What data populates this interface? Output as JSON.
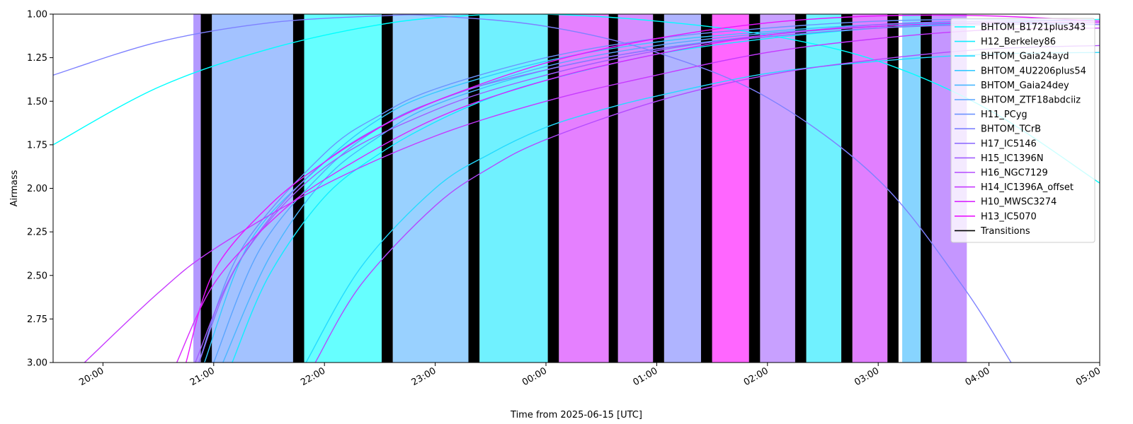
{
  "chart_data": {
    "type": "line",
    "title": "",
    "xlabel": "Time from 2025-06-15 [UTC]",
    "ylabel": "Airmass",
    "ylim": [
      3.0,
      1.0
    ],
    "y_inverted": true,
    "xlim": [
      "2025-06-15 19:33",
      "2025-06-16 05:00"
    ],
    "x_ticks": [
      "20:00",
      "21:00",
      "22:00",
      "23:00",
      "00:00",
      "01:00",
      "02:00",
      "03:00",
      "04:00",
      "05:00"
    ],
    "x_tick_times": [
      "2025-06-15 20:00",
      "2025-06-15 21:00",
      "2025-06-15 22:00",
      "2025-06-15 23:00",
      "2025-06-16 00:00",
      "2025-06-16 01:00",
      "2025-06-16 02:00",
      "2025-06-16 03:00",
      "2025-06-16 04:00",
      "2025-06-16 05:00"
    ],
    "y_ticks": [
      "1.00",
      "1.25",
      "1.50",
      "1.75",
      "2.00",
      "2.25",
      "2.50",
      "2.75",
      "3.00"
    ],
    "y_tick_values": [
      1.0,
      1.25,
      1.5,
      1.75,
      2.0,
      2.25,
      2.5,
      2.75,
      3.0
    ],
    "grid": false,
    "legend_position": "top-right",
    "series": [
      {
        "name": "BHTOM_B1721plus343",
        "color": "#00ffff",
        "points": [
          [
            "2025-06-15 19:33",
            1.75
          ],
          [
            "2025-06-15 20:30",
            1.42
          ],
          [
            "2025-06-15 21:30",
            1.2
          ],
          [
            "2025-06-15 22:30",
            1.06
          ],
          [
            "2025-06-15 23:15",
            1.01
          ],
          [
            "2025-06-16 00:00",
            1.0
          ],
          [
            "2025-06-16 01:00",
            1.04
          ],
          [
            "2025-06-16 02:00",
            1.12
          ],
          [
            "2025-06-16 03:00",
            1.27
          ],
          [
            "2025-06-16 04:00",
            1.55
          ],
          [
            "2025-06-16 05:00",
            1.97
          ]
        ]
      },
      {
        "name": "H12_Berkeley86",
        "color": "#12edff",
        "points": [
          [
            "2025-06-15 21:10",
            3.0
          ],
          [
            "2025-06-15 21:30",
            2.5
          ],
          [
            "2025-06-15 22:00",
            2.05
          ],
          [
            "2025-06-15 22:30",
            1.8
          ],
          [
            "2025-06-15 23:00",
            1.62
          ],
          [
            "2025-06-15 23:30",
            1.48
          ],
          [
            "2025-06-16 00:00",
            1.38
          ],
          [
            "2025-06-16 01:00",
            1.23
          ],
          [
            "2025-06-16 02:00",
            1.14
          ],
          [
            "2025-06-16 03:00",
            1.08
          ],
          [
            "2025-06-16 04:00",
            1.05
          ],
          [
            "2025-06-16 05:00",
            1.03
          ]
        ]
      },
      {
        "name": "BHTOM_Gaia24ayd",
        "color": "#24dbff",
        "points": [
          [
            "2025-06-15 21:50",
            3.0
          ],
          [
            "2025-06-15 22:20",
            2.45
          ],
          [
            "2025-06-15 23:00",
            2.0
          ],
          [
            "2025-06-15 23:30",
            1.8
          ],
          [
            "2025-06-16 00:00",
            1.65
          ],
          [
            "2025-06-16 00:30",
            1.55
          ],
          [
            "2025-06-16 01:00",
            1.47
          ],
          [
            "2025-06-16 02:00",
            1.34
          ],
          [
            "2025-06-16 03:00",
            1.27
          ],
          [
            "2025-06-16 04:00",
            1.23
          ],
          [
            "2025-06-16 05:00",
            1.22
          ]
        ]
      },
      {
        "name": "BHTOM_4U2206plus54",
        "color": "#36c9ff",
        "points": [
          [
            "2025-06-15 20:55",
            3.0
          ],
          [
            "2025-06-15 21:20",
            2.3
          ],
          [
            "2025-06-15 22:00",
            1.85
          ],
          [
            "2025-06-15 22:30",
            1.6
          ],
          [
            "2025-06-15 23:00",
            1.45
          ],
          [
            "2025-06-16 00:00",
            1.27
          ],
          [
            "2025-06-16 01:00",
            1.16
          ],
          [
            "2025-06-16 02:00",
            1.1
          ],
          [
            "2025-06-16 03:00",
            1.06
          ],
          [
            "2025-06-16 04:00",
            1.05
          ],
          [
            "2025-06-16 05:00",
            1.06
          ]
        ]
      },
      {
        "name": "BHTOM_Gaia24dey",
        "color": "#48b7ff",
        "points": [
          [
            "2025-06-15 21:05",
            3.0
          ],
          [
            "2025-06-15 21:30",
            2.4
          ],
          [
            "2025-06-15 22:00",
            1.95
          ],
          [
            "2025-06-15 22:30",
            1.7
          ],
          [
            "2025-06-15 23:00",
            1.52
          ],
          [
            "2025-06-16 00:00",
            1.32
          ],
          [
            "2025-06-16 01:00",
            1.2
          ],
          [
            "2025-06-16 02:00",
            1.12
          ],
          [
            "2025-06-16 03:00",
            1.07
          ],
          [
            "2025-06-16 04:00",
            1.05
          ],
          [
            "2025-06-16 05:00",
            1.05
          ]
        ]
      },
      {
        "name": "BHTOM_ZTF18abdciiz",
        "color": "#5aa5ff",
        "points": [
          [
            "2025-06-15 21:00",
            3.0
          ],
          [
            "2025-06-15 21:25",
            2.35
          ],
          [
            "2025-06-15 22:00",
            1.9
          ],
          [
            "2025-06-15 22:30",
            1.65
          ],
          [
            "2025-06-15 23:00",
            1.5
          ],
          [
            "2025-06-16 00:00",
            1.3
          ],
          [
            "2025-06-16 01:00",
            1.18
          ],
          [
            "2025-06-16 02:00",
            1.11
          ],
          [
            "2025-06-16 03:00",
            1.07
          ],
          [
            "2025-06-16 04:00",
            1.05
          ],
          [
            "2025-06-16 05:00",
            1.05
          ]
        ]
      },
      {
        "name": "H11_PCyg",
        "color": "#6c93ff",
        "points": [
          [
            "2025-06-15 20:52",
            3.0
          ],
          [
            "2025-06-15 21:15",
            2.35
          ],
          [
            "2025-06-15 22:00",
            1.8
          ],
          [
            "2025-06-15 22:30",
            1.58
          ],
          [
            "2025-06-15 23:00",
            1.43
          ],
          [
            "2025-06-16 00:00",
            1.25
          ],
          [
            "2025-06-16 01:00",
            1.14
          ],
          [
            "2025-06-16 02:00",
            1.08
          ],
          [
            "2025-06-16 03:00",
            1.04
          ],
          [
            "2025-06-16 04:00",
            1.03
          ],
          [
            "2025-06-16 05:00",
            1.04
          ]
        ]
      },
      {
        "name": "BHTOM_TCrB",
        "color": "#7e81ff",
        "points": [
          [
            "2025-06-15 19:33",
            1.35
          ],
          [
            "2025-06-15 20:30",
            1.16
          ],
          [
            "2025-06-15 21:30",
            1.05
          ],
          [
            "2025-06-15 22:30",
            1.01
          ],
          [
            "2025-06-15 23:00",
            1.01
          ],
          [
            "2025-06-16 00:00",
            1.07
          ],
          [
            "2025-06-16 01:00",
            1.22
          ],
          [
            "2025-06-16 02:00",
            1.48
          ],
          [
            "2025-06-16 03:00",
            1.95
          ],
          [
            "2025-06-16 03:45",
            2.55
          ],
          [
            "2025-06-16 04:12",
            3.0
          ]
        ]
      },
      {
        "name": "H17_IC5146",
        "color": "#906fff",
        "points": [
          [
            "2025-06-15 20:52",
            3.0
          ],
          [
            "2025-06-15 21:15",
            2.4
          ],
          [
            "2025-06-15 22:00",
            1.85
          ],
          [
            "2025-06-15 23:00",
            1.5
          ],
          [
            "2025-06-16 00:00",
            1.32
          ],
          [
            "2025-06-16 01:00",
            1.2
          ],
          [
            "2025-06-16 02:00",
            1.13
          ],
          [
            "2025-06-16 03:00",
            1.08
          ],
          [
            "2025-06-16 04:00",
            1.06
          ],
          [
            "2025-06-16 05:00",
            1.06
          ]
        ]
      },
      {
        "name": "H15_IC1396N",
        "color": "#a25dff",
        "points": [
          [
            "2025-06-15 20:50",
            3.0
          ],
          [
            "2025-06-15 21:15",
            2.4
          ],
          [
            "2025-06-15 22:00",
            1.88
          ],
          [
            "2025-06-15 23:00",
            1.55
          ],
          [
            "2025-06-16 00:00",
            1.35
          ],
          [
            "2025-06-16 01:00",
            1.21
          ],
          [
            "2025-06-16 02:00",
            1.12
          ],
          [
            "2025-06-16 03:00",
            1.06
          ],
          [
            "2025-06-16 04:00",
            1.04
          ],
          [
            "2025-06-16 05:00",
            1.04
          ]
        ]
      },
      {
        "name": "H16_NGC7129",
        "color": "#b44bff",
        "points": [
          [
            "2025-06-15 21:55",
            3.0
          ],
          [
            "2025-06-15 22:20",
            2.55
          ],
          [
            "2025-06-15 23:00",
            2.1
          ],
          [
            "2025-06-15 23:30",
            1.88
          ],
          [
            "2025-06-16 00:00",
            1.72
          ],
          [
            "2025-06-16 01:00",
            1.5
          ],
          [
            "2025-06-16 02:00",
            1.35
          ],
          [
            "2025-06-16 03:00",
            1.26
          ],
          [
            "2025-06-16 04:00",
            1.2
          ],
          [
            "2025-06-16 05:00",
            1.18
          ]
        ]
      },
      {
        "name": "H14_IC1396A_offset",
        "color": "#c639ff",
        "points": [
          [
            "2025-06-15 19:50",
            3.0
          ],
          [
            "2025-06-15 20:30",
            2.6
          ],
          [
            "2025-06-15 21:00",
            2.35
          ],
          [
            "2025-06-15 22:00",
            1.98
          ],
          [
            "2025-06-15 23:00",
            1.7
          ],
          [
            "2025-06-16 00:00",
            1.5
          ],
          [
            "2025-06-16 01:00",
            1.35
          ],
          [
            "2025-06-16 02:00",
            1.22
          ],
          [
            "2025-06-16 03:00",
            1.14
          ],
          [
            "2025-06-16 04:00",
            1.09
          ],
          [
            "2025-06-16 05:00",
            1.08
          ]
        ]
      },
      {
        "name": "H10_MWSC3274",
        "color": "#d827ff",
        "points": [
          [
            "2025-06-15 20:40",
            3.0
          ],
          [
            "2025-06-15 21:00",
            2.55
          ],
          [
            "2025-06-15 21:30",
            2.2
          ],
          [
            "2025-06-15 22:00",
            1.95
          ],
          [
            "2025-06-15 23:00",
            1.6
          ],
          [
            "2025-06-16 00:00",
            1.38
          ],
          [
            "2025-06-16 01:00",
            1.23
          ],
          [
            "2025-06-16 02:00",
            1.12
          ],
          [
            "2025-06-16 03:00",
            1.07
          ],
          [
            "2025-06-16 04:00",
            1.05
          ],
          [
            "2025-06-16 05:00",
            1.05
          ]
        ]
      },
      {
        "name": "H13_IC5070",
        "color": "#ea15ff",
        "points": [
          [
            "2025-06-15 20:45",
            3.0
          ],
          [
            "2025-06-15 21:00",
            2.48
          ],
          [
            "2025-06-15 21:30",
            2.1
          ],
          [
            "2025-06-15 22:00",
            1.85
          ],
          [
            "2025-06-15 22:30",
            1.65
          ],
          [
            "2025-06-15 23:00",
            1.5
          ],
          [
            "2025-06-16 00:00",
            1.28
          ],
          [
            "2025-06-16 01:00",
            1.14
          ],
          [
            "2025-06-16 02:00",
            1.05
          ],
          [
            "2025-06-16 03:00",
            1.01
          ],
          [
            "2025-06-16 04:00",
            1.01
          ],
          [
            "2025-06-16 05:00",
            1.04
          ]
        ]
      },
      {
        "name": "Transitions",
        "color": "#000000",
        "points": []
      }
    ],
    "observation_blocks": [
      {
        "start": "2025-06-15 20:49",
        "end": "2025-06-15 20:53",
        "color": "#b399ff"
      },
      {
        "start": "2025-06-15 20:59",
        "end": "2025-06-15 21:43",
        "color": "#a3c2ff"
      },
      {
        "start": "2025-06-15 21:49",
        "end": "2025-06-15 22:31",
        "color": "#66ffff"
      },
      {
        "start": "2025-06-15 22:37",
        "end": "2025-06-15 23:18",
        "color": "#99d1ff"
      },
      {
        "start": "2025-06-15 23:24",
        "end": "2025-06-16 00:01",
        "color": "#70f1ff"
      },
      {
        "start": "2025-06-16 00:07",
        "end": "2025-06-16 00:34",
        "color": "#e580ff"
      },
      {
        "start": "2025-06-16 00:39",
        "end": "2025-06-16 00:58",
        "color": "#d68cff"
      },
      {
        "start": "2025-06-16 01:04",
        "end": "2025-06-16 01:24",
        "color": "#afb4ff"
      },
      {
        "start": "2025-06-16 01:30",
        "end": "2025-06-16 01:50",
        "color": "#ff66ff"
      },
      {
        "start": "2025-06-16 01:56",
        "end": "2025-06-16 02:15",
        "color": "#c8a0ff"
      },
      {
        "start": "2025-06-16 02:21",
        "end": "2025-06-16 02:40",
        "color": "#70f1ff"
      },
      {
        "start": "2025-06-16 02:46",
        "end": "2025-06-16 03:05",
        "color": "#e17fff"
      },
      {
        "start": "2025-06-16 03:13",
        "end": "2025-06-16 03:23",
        "color": "#87d4ff"
      },
      {
        "start": "2025-06-16 03:29",
        "end": "2025-06-16 03:48",
        "color": "#c596ff"
      }
    ],
    "transitions": [
      {
        "start": "2025-06-15 20:53",
        "end": "2025-06-15 20:59"
      },
      {
        "start": "2025-06-15 21:43",
        "end": "2025-06-15 21:49"
      },
      {
        "start": "2025-06-15 22:31",
        "end": "2025-06-15 22:37"
      },
      {
        "start": "2025-06-15 23:18",
        "end": "2025-06-15 23:24"
      },
      {
        "start": "2025-06-16 00:01",
        "end": "2025-06-16 00:07"
      },
      {
        "start": "2025-06-16 00:34",
        "end": "2025-06-16 00:39"
      },
      {
        "start": "2025-06-16 00:58",
        "end": "2025-06-16 01:04"
      },
      {
        "start": "2025-06-16 01:24",
        "end": "2025-06-16 01:30"
      },
      {
        "start": "2025-06-16 01:50",
        "end": "2025-06-16 01:56"
      },
      {
        "start": "2025-06-16 02:15",
        "end": "2025-06-16 02:21"
      },
      {
        "start": "2025-06-16 02:40",
        "end": "2025-06-16 02:46"
      },
      {
        "start": "2025-06-16 03:05",
        "end": "2025-06-16 03:11"
      },
      {
        "start": "2025-06-16 03:23",
        "end": "2025-06-16 03:29"
      }
    ]
  }
}
